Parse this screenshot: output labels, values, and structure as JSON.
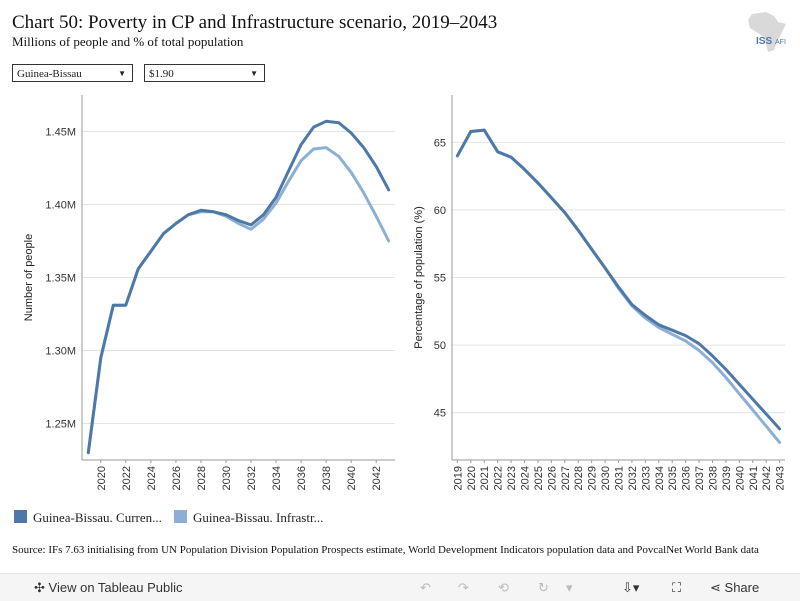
{
  "header": {
    "title": "Chart 50: Poverty in CP and Infrastructure scenario, 2019–2043",
    "subtitle": "Millions of people and % of total population",
    "logo_text": "ISS",
    "logo_text_small": "AFI"
  },
  "filters": {
    "country": "Guinea-Bissau",
    "poverty_line": "$1.90"
  },
  "legend": {
    "items": [
      {
        "label": "Guinea-Bissau. Curren...",
        "color": "#4e79a7"
      },
      {
        "label": "Guinea-Bissau. Infrastr...",
        "color": "#8cafd3"
      }
    ]
  },
  "source": "Source: IFs 7.63 initialising from UN Population Division Population Prospects estimate, World Development Indicators population data and PovcalNet World Bank data",
  "footer": {
    "view_label": "View on Tableau Public",
    "share_label": "Share"
  },
  "chart_data": [
    {
      "type": "line",
      "ylabel": "Number of people",
      "ylim": [
        1.225,
        1.475
      ],
      "yticks": [
        1.25,
        1.3,
        1.35,
        1.4,
        1.45
      ],
      "ytick_labels": [
        "1.25M",
        "1.30M",
        "1.35M",
        "1.40M",
        "1.45M"
      ],
      "xlim": [
        2018.5,
        2043.5
      ],
      "xtick_labels": [
        "2020",
        "2022",
        "2024",
        "2026",
        "2028",
        "2030",
        "2032",
        "2034",
        "2036",
        "2038",
        "2040",
        "2042"
      ],
      "grid": true,
      "x": [
        2019,
        2020,
        2021,
        2022,
        2023,
        2024,
        2025,
        2026,
        2027,
        2028,
        2029,
        2030,
        2031,
        2032,
        2033,
        2034,
        2035,
        2036,
        2037,
        2038,
        2039,
        2040,
        2041,
        2042,
        2043
      ],
      "series": [
        {
          "name": "Guinea-Bissau. Curren...",
          "color": "#4e79a7",
          "values": [
            1.23,
            1.295,
            1.331,
            1.331,
            1.356,
            1.368,
            1.38,
            1.387,
            1.393,
            1.396,
            1.395,
            1.393,
            1.389,
            1.386,
            1.393,
            1.405,
            1.423,
            1.441,
            1.453,
            1.457,
            1.456,
            1.449,
            1.439,
            1.426,
            1.41
          ]
        },
        {
          "name": "Guinea-Bissau. Infrastr...",
          "color": "#8cafd3",
          "values": [
            1.23,
            1.295,
            1.331,
            1.331,
            1.356,
            1.368,
            1.38,
            1.387,
            1.393,
            1.395,
            1.395,
            1.392,
            1.387,
            1.383,
            1.39,
            1.401,
            1.416,
            1.43,
            1.438,
            1.439,
            1.433,
            1.422,
            1.408,
            1.392,
            1.375
          ]
        }
      ]
    },
    {
      "type": "line",
      "ylabel": "Percentage of population (%)",
      "ylim": [
        41.5,
        68.5
      ],
      "yticks": [
        45,
        50,
        55,
        60,
        65
      ],
      "ytick_labels": [
        "45",
        "50",
        "55",
        "60",
        "65"
      ],
      "xlim": [
        2018.6,
        2043.4
      ],
      "xtick_labels": [
        "2019",
        "2020",
        "2021",
        "2022",
        "2023",
        "2024",
        "2025",
        "2026",
        "2027",
        "2028",
        "2029",
        "2030",
        "2031",
        "2032",
        "2033",
        "2034",
        "2035",
        "2036",
        "2037",
        "2038",
        "2039",
        "2040",
        "2041",
        "2042",
        "2043"
      ],
      "grid": true,
      "x": [
        2019,
        2020,
        2021,
        2022,
        2023,
        2024,
        2025,
        2026,
        2027,
        2028,
        2029,
        2030,
        2031,
        2032,
        2033,
        2034,
        2035,
        2036,
        2037,
        2038,
        2039,
        2040,
        2041,
        2042,
        2043
      ],
      "series": [
        {
          "name": "Guinea-Bissau. Curren...",
          "color": "#4e79a7",
          "values": [
            64.0,
            65.8,
            65.9,
            64.3,
            63.9,
            63.0,
            62.0,
            60.9,
            59.8,
            58.5,
            57.1,
            55.7,
            54.3,
            53.0,
            52.2,
            51.5,
            51.1,
            50.7,
            50.1,
            49.2,
            48.2,
            47.1,
            46.0,
            44.9,
            43.8
          ]
        },
        {
          "name": "Guinea-Bissau. Infrastr...",
          "color": "#8cafd3",
          "values": [
            64.0,
            65.8,
            65.9,
            64.3,
            63.9,
            63.0,
            62.0,
            60.9,
            59.8,
            58.5,
            57.1,
            55.7,
            54.2,
            52.9,
            52.0,
            51.3,
            50.8,
            50.3,
            49.6,
            48.7,
            47.6,
            46.4,
            45.2,
            44.0,
            42.8
          ]
        }
      ]
    }
  ]
}
